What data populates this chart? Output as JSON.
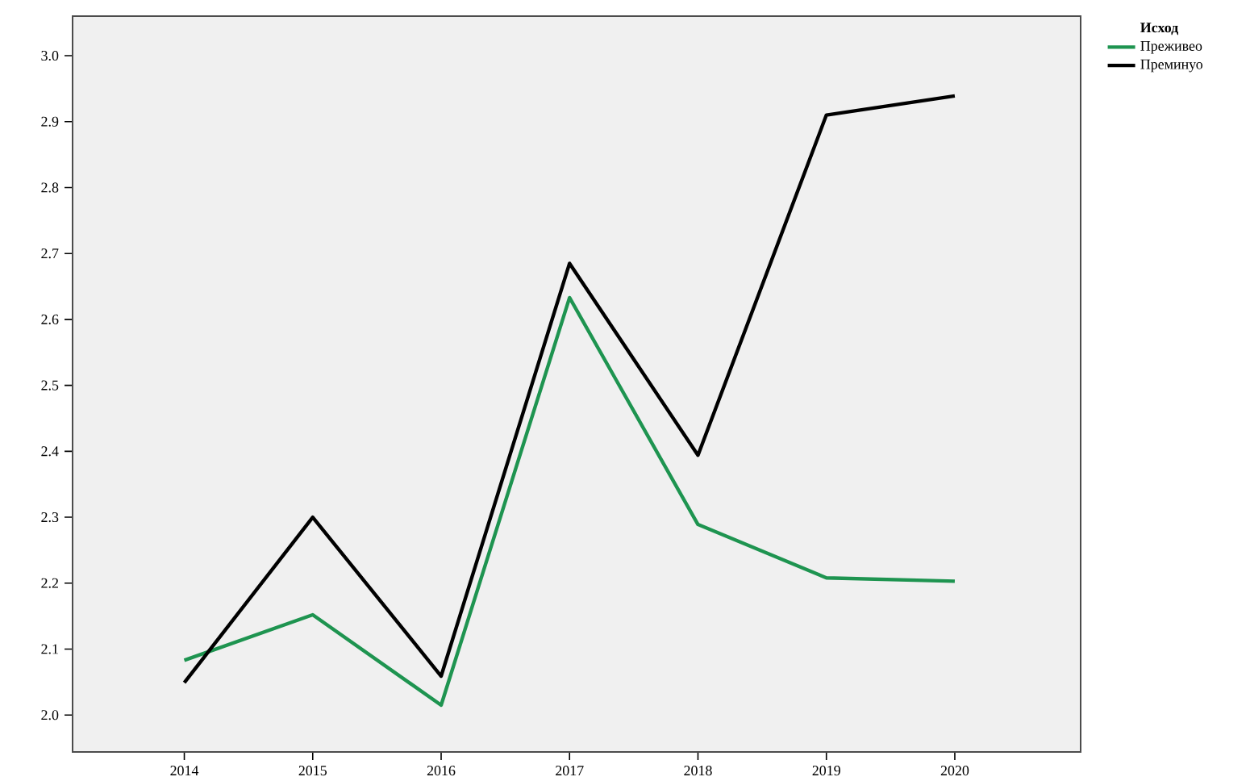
{
  "chart_data": {
    "type": "line",
    "legend_title": "Исход",
    "x": [
      2014,
      2015,
      2016,
      2017,
      2018,
      2019,
      2020
    ],
    "series": [
      {
        "name": "Преживео",
        "color": "#1e9450",
        "values": [
          2.083,
          2.152,
          2.015,
          2.633,
          2.289,
          2.208,
          2.203
        ]
      },
      {
        "name": "Преминуо",
        "color": "#000000",
        "values": [
          2.049,
          2.3,
          2.059,
          2.685,
          2.394,
          2.91,
          2.939
        ]
      }
    ],
    "xlim": [
      2013.13,
      2020.98
    ],
    "ylim": [
      1.944,
      3.06
    ],
    "xticks": [
      2014,
      2015,
      2016,
      2017,
      2018,
      2019,
      2020
    ],
    "yticks": [
      {
        "value": 2.0,
        "label": "2.0"
      },
      {
        "value": 2.1,
        "label": "2.1"
      },
      {
        "value": 2.2,
        "label": "2.2"
      },
      {
        "value": 2.3,
        "label": "2.3"
      },
      {
        "value": 2.4,
        "label": "2.4"
      },
      {
        "value": 2.5,
        "label": "2.5"
      },
      {
        "value": 2.6,
        "label": "2.6"
      },
      {
        "value": 2.7,
        "label": "2.7"
      },
      {
        "value": 2.8,
        "label": "2.8"
      },
      {
        "value": 2.9,
        "label": "2.9"
      },
      {
        "value": 3.0,
        "label": "3.0"
      }
    ],
    "grid": false,
    "legend": "top right",
    "marker": "none",
    "line_style": "solid"
  }
}
